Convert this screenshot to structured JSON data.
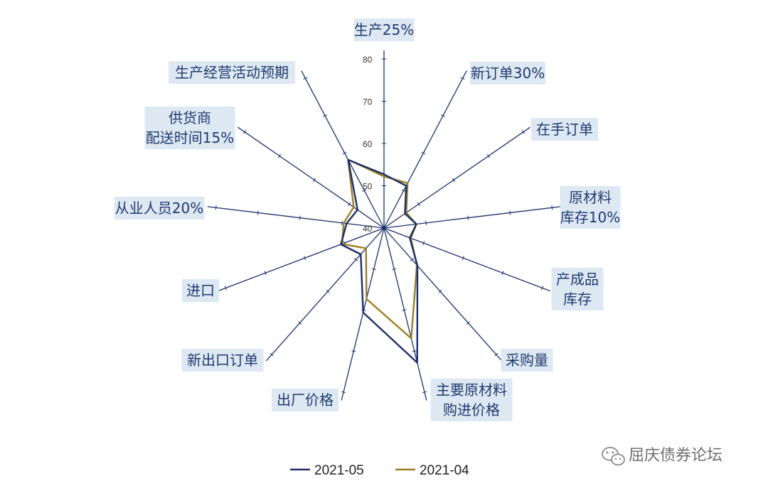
{
  "chart_data": {
    "type": "radar",
    "r_axis": {
      "min": 40,
      "max": 80,
      "ticks": [
        "40",
        "50",
        "60",
        "70",
        "80"
      ]
    },
    "axes": [
      {
        "lines": [
          "生产25%"
        ]
      },
      {
        "lines": [
          "新订单30%"
        ]
      },
      {
        "lines": [
          "在手订单"
        ]
      },
      {
        "lines": [
          "原材料",
          "库存10%"
        ]
      },
      {
        "lines": [
          "产成品",
          "库存"
        ]
      },
      {
        "lines": [
          "采购量"
        ]
      },
      {
        "lines": [
          "主要原材料",
          "购进价格"
        ]
      },
      {
        "lines": [
          "出厂价格"
        ]
      },
      {
        "lines": [
          "新出口订单"
        ]
      },
      {
        "lines": [
          "进口"
        ]
      },
      {
        "lines": [
          "从业人员20%"
        ]
      },
      {
        "lines": [
          "供货商",
          "配送时间15%"
        ]
      },
      {
        "lines": [
          "生产经营活动预期"
        ]
      }
    ],
    "series": [
      {
        "name": "2021-05",
        "color": "#1c2f6b",
        "values": [
          52.7,
          51.3,
          46.0,
          47.7,
          46.5,
          51.9,
          72.8,
          60.6,
          48.3,
          50.9,
          48.9,
          47.6,
          58.2
        ]
      },
      {
        "name": "2021-04",
        "color": "#9c7e22",
        "values": [
          52.2,
          52.0,
          46.4,
          47.7,
          46.8,
          51.7,
          66.9,
          57.3,
          46.4,
          50.6,
          49.6,
          48.7,
          58.3
        ]
      }
    ]
  },
  "watermark": {
    "text": "屈庆债券论坛"
  }
}
